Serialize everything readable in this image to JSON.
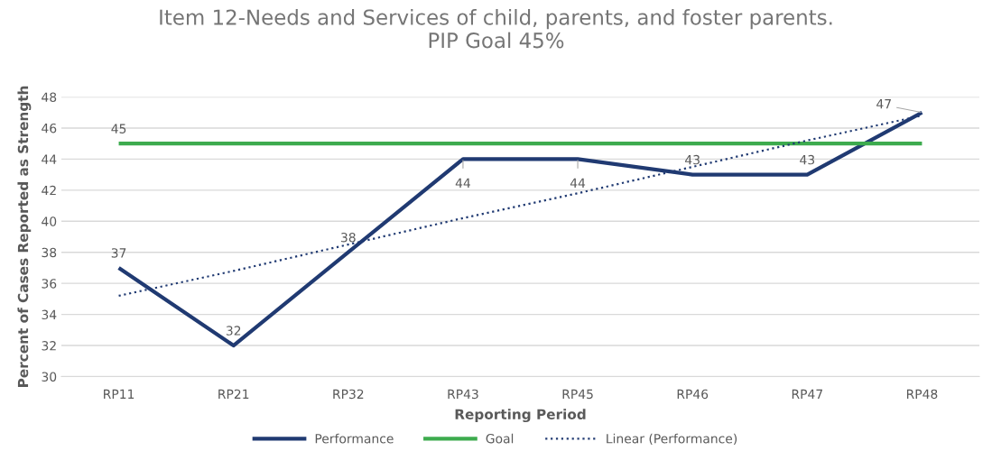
{
  "chart_data": {
    "type": "line",
    "title": "Item 12-Needs and Services of child, parents, and foster parents.\nPIP Goal 45%",
    "xlabel": "Reporting Period",
    "ylabel": "Percent of Cases Reported as Strength",
    "categories": [
      "RP11",
      "RP21",
      "RP32",
      "RP43",
      "RP45",
      "RP46",
      "RP47",
      "RP48"
    ],
    "series": [
      {
        "name": "Performance",
        "color": "#203a72",
        "values": [
          37,
          32,
          38,
          44,
          44,
          43,
          43,
          47
        ],
        "value_labels": [
          "37",
          "32",
          "38",
          "44",
          "44",
          "43",
          "43",
          "47"
        ]
      },
      {
        "name": "Goal",
        "color": "#3dab4e",
        "values": [
          45,
          45,
          45,
          45,
          45,
          45,
          45,
          45
        ],
        "value_labels": [
          "45",
          null,
          null,
          null,
          null,
          null,
          null,
          null
        ]
      },
      {
        "name": "Linear (Performance)",
        "color": "#203a72",
        "line_style": "dotted",
        "values": [
          35.2,
          36.8,
          38.5,
          40.2,
          41.8,
          43.5,
          45.2,
          46.8
        ]
      }
    ],
    "ylim": [
      30,
      48
    ],
    "yticks": [
      30,
      32,
      34,
      36,
      38,
      40,
      42,
      44,
      46,
      48
    ],
    "grid": "y",
    "legend": "bottom"
  }
}
